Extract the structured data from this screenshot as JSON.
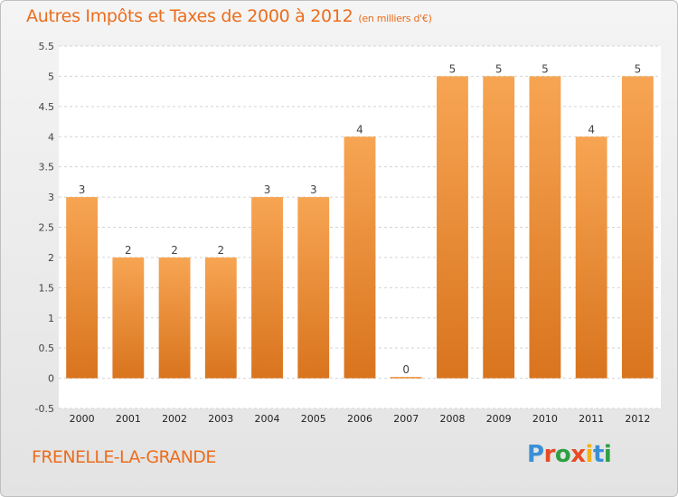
{
  "title": "Autres Impôts et Taxes de 2000 à 2012",
  "unit": "(en milliers d'€)",
  "commune": "FRENELLE-LA-GRANDE",
  "logo": {
    "letters": [
      "P",
      "r",
      "o",
      "x",
      "i",
      "t",
      "i"
    ],
    "colors": [
      "#3a8fd6",
      "#e84a24",
      "#2ea043",
      "#e84a24",
      "#f2b21a",
      "#3a8fd6",
      "#2ea043"
    ]
  },
  "colors": {
    "bar_top": "#f7a553",
    "bar_bottom": "#d9741e",
    "text": "#ec6d1c"
  },
  "chart_data": {
    "type": "bar",
    "categories": [
      "2000",
      "2001",
      "2002",
      "2003",
      "2004",
      "2005",
      "2006",
      "2007",
      "2008",
      "2009",
      "2010",
      "2011",
      "2012"
    ],
    "values": [
      3,
      2,
      2,
      2,
      3,
      3,
      4,
      0,
      5,
      5,
      5,
      4,
      5
    ],
    "ylim": [
      -0.5,
      5.5
    ],
    "yticks": [
      "-0.5",
      "0",
      "0.5",
      "1",
      "1.5",
      "2",
      "2.5",
      "3",
      "3.5",
      "4",
      "4.5",
      "5",
      "5.5"
    ],
    "grid": true,
    "data_labels": true
  }
}
